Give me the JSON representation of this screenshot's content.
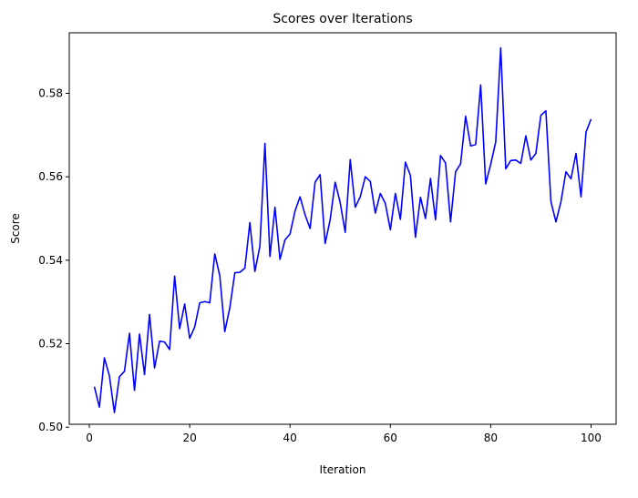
{
  "chart_data": {
    "type": "line",
    "title": "Scores over Iterations",
    "xlabel": "Iteration",
    "ylabel": "Score",
    "xlim": [
      -4,
      105
    ],
    "ylim": [
      0.5007,
      0.5945
    ],
    "xticks": [
      0,
      20,
      40,
      60,
      80,
      100
    ],
    "yticks": [
      0.5,
      0.52,
      0.54,
      0.56,
      0.58
    ],
    "ytick_labels": [
      "0.50",
      "0.52",
      "0.54",
      "0.56",
      "0.58"
    ],
    "grid": false,
    "series": [
      {
        "color": "#0000ff",
        "x": [
          1,
          2,
          3,
          4,
          5,
          6,
          7,
          8,
          9,
          10,
          11,
          12,
          13,
          14,
          15,
          16,
          17,
          18,
          19,
          20,
          21,
          22,
          23,
          24,
          25,
          26,
          27,
          28,
          29,
          30,
          31,
          32,
          33,
          34,
          35,
          36,
          37,
          38,
          39,
          40,
          41,
          42,
          43,
          44,
          45,
          46,
          47,
          48,
          49,
          50,
          51,
          52,
          53,
          54,
          55,
          56,
          57,
          58,
          59,
          60,
          61,
          62,
          63,
          64,
          65,
          66,
          67,
          68,
          69,
          70,
          71,
          72,
          73,
          74,
          75,
          76,
          77,
          78,
          79,
          80,
          81,
          82,
          83,
          84,
          85,
          86,
          87,
          88,
          89,
          90,
          91,
          92,
          93,
          94,
          95,
          96,
          97,
          98,
          99,
          100
        ],
        "values": [
          0.5097,
          0.5048,
          0.5166,
          0.5123,
          0.5035,
          0.5121,
          0.5134,
          0.5225,
          0.5088,
          0.5223,
          0.5126,
          0.527,
          0.5142,
          0.5206,
          0.5204,
          0.5186,
          0.5362,
          0.5236,
          0.5295,
          0.5213,
          0.524,
          0.5298,
          0.5301,
          0.5298,
          0.5415,
          0.5363,
          0.5229,
          0.5286,
          0.537,
          0.5371,
          0.5381,
          0.549,
          0.5373,
          0.5434,
          0.568,
          0.5409,
          0.5527,
          0.5402,
          0.5449,
          0.5463,
          0.5518,
          0.5552,
          0.5509,
          0.5476,
          0.5587,
          0.5605,
          0.544,
          0.5497,
          0.5587,
          0.5538,
          0.5467,
          0.5641,
          0.5527,
          0.5552,
          0.56,
          0.5589,
          0.5513,
          0.556,
          0.5536,
          0.5473,
          0.556,
          0.5498,
          0.5635,
          0.5603,
          0.5455,
          0.5551,
          0.55,
          0.5596,
          0.5497,
          0.5651,
          0.5633,
          0.5492,
          0.5612,
          0.5631,
          0.5745,
          0.5674,
          0.5677,
          0.582,
          0.5583,
          0.563,
          0.5683,
          0.5909,
          0.5619,
          0.5639,
          0.564,
          0.5632,
          0.5698,
          0.564,
          0.5656,
          0.5747,
          0.5758,
          0.5541,
          0.5492,
          0.554,
          0.5612,
          0.5595,
          0.5656,
          0.5552,
          0.5707,
          0.5738
        ]
      }
    ]
  }
}
